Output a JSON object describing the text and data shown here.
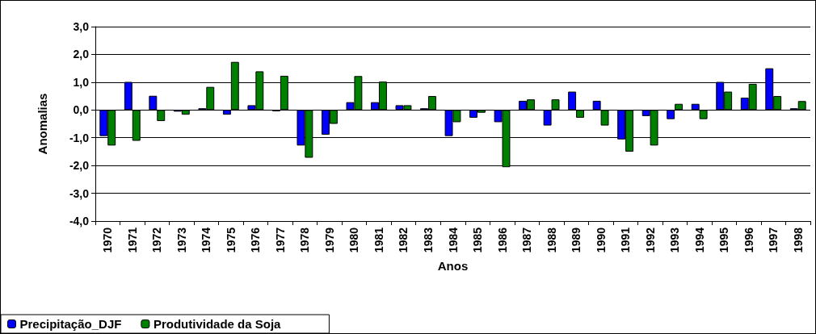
{
  "chart_data": {
    "type": "bar",
    "xlabel": "Anos",
    "ylabel": "Anomalias",
    "categories": [
      "1970",
      "1971",
      "1972",
      "1973",
      "1974",
      "1975",
      "1976",
      "1977",
      "1978",
      "1979",
      "1980",
      "1981",
      "1982",
      "1983",
      "1984",
      "1985",
      "1986",
      "1987",
      "1988",
      "1989",
      "1990",
      "1991",
      "1992",
      "1993",
      "1994",
      "1995",
      "1996",
      "1997",
      "1998"
    ],
    "series": [
      {
        "name": "Precipitação_DJF",
        "color": "#0000ff",
        "values": [
          -0.94,
          1.01,
          0.51,
          -0.06,
          0.06,
          -0.17,
          0.17,
          -0.05,
          -1.28,
          -0.89,
          0.28,
          0.28,
          0.17,
          0.06,
          -0.94,
          -0.28,
          -0.44,
          0.33,
          -0.56,
          0.66,
          0.33,
          -1.06,
          -0.22,
          -0.33,
          0.22,
          1.01,
          0.44,
          1.5,
          0.06
        ]
      },
      {
        "name": "Produtividade da Soja",
        "color": "#008000",
        "values": [
          -1.28,
          -1.11,
          -0.4,
          -0.17,
          0.83,
          1.73,
          1.39,
          1.23,
          -1.72,
          -0.5,
          1.22,
          1.02,
          0.17,
          0.5,
          -0.44,
          -0.1,
          -2.06,
          0.38,
          0.38,
          -0.28,
          -0.56,
          -1.5,
          -1.28,
          0.22,
          -0.33,
          0.66,
          0.94,
          0.5,
          0.32
        ]
      }
    ],
    "ylim": [
      -4,
      3
    ],
    "yticks": [
      {
        "value": -4,
        "label": "-4,0"
      },
      {
        "value": -3,
        "label": "-3,0"
      },
      {
        "value": -2,
        "label": "-2,0"
      },
      {
        "value": -1,
        "label": "-1,0"
      },
      {
        "value": 0,
        "label": "0,0"
      },
      {
        "value": 1,
        "label": "1,0"
      },
      {
        "value": 2,
        "label": "2,0"
      },
      {
        "value": 3,
        "label": "3,0"
      }
    ],
    "grid": "y",
    "legend": "bottom left"
  }
}
